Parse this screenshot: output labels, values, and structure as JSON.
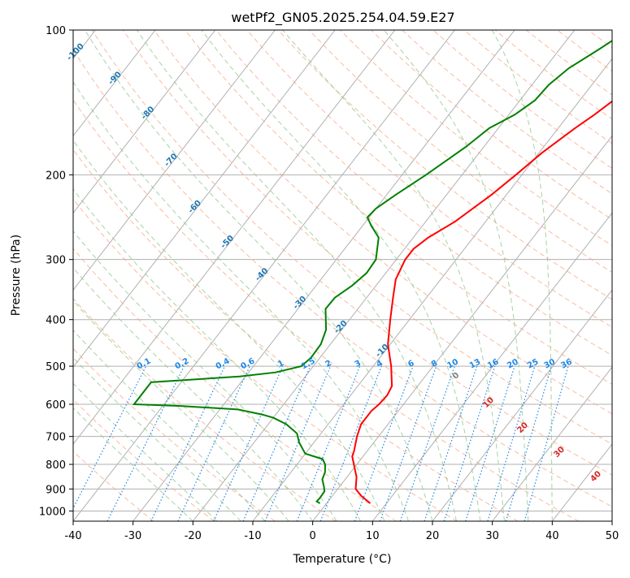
{
  "chart_data": {
    "type": "line",
    "chart_kind": "skew-T log-P diagram",
    "title": "wetPf2_GN05.2025.254.04.59.E27",
    "xlabel": "Temperature (°C)",
    "ylabel": "Pressure (hPa)",
    "xlim": [
      -40,
      50
    ],
    "ylim": [
      1050,
      100
    ],
    "y_scale": "log",
    "x_ticks": [
      -40,
      -30,
      -20,
      -10,
      0,
      10,
      20,
      30,
      40,
      50
    ],
    "y_ticks": [
      100,
      200,
      300,
      400,
      500,
      600,
      700,
      800,
      900,
      1000
    ],
    "grid": true,
    "legend": "none",
    "series": [
      {
        "color": "#ff0000",
        "points": [
          [
            964,
            7.3
          ],
          [
            930,
            4.8
          ],
          [
            900,
            3.0
          ],
          [
            850,
            1.6
          ],
          [
            800,
            -0.5
          ],
          [
            770,
            -1.8
          ],
          [
            750,
            -2.2
          ],
          [
            700,
            -3.6
          ],
          [
            660,
            -4.5
          ],
          [
            620,
            -4.5
          ],
          [
            600,
            -4.1
          ],
          [
            575,
            -3.9
          ],
          [
            550,
            -4.3
          ],
          [
            500,
            -7.0
          ],
          [
            450,
            -10.4
          ],
          [
            400,
            -13.2
          ],
          [
            360,
            -15.6
          ],
          [
            330,
            -17.5
          ],
          [
            300,
            -18.5
          ],
          [
            285,
            -18.5
          ],
          [
            270,
            -17.5
          ],
          [
            250,
            -15.1
          ],
          [
            220,
            -12.5
          ],
          [
            200,
            -11.0
          ],
          [
            180,
            -9.5
          ],
          [
            160,
            -7.2
          ],
          [
            150,
            -5.7
          ],
          [
            140,
            -4.4
          ],
          [
            130,
            -2.0
          ],
          [
            120,
            0.5
          ],
          [
            110,
            3.0
          ],
          [
            100,
            6.0
          ]
        ]
      },
      {
        "color": "#008000",
        "points": [
          [
            964,
            -1.1
          ],
          [
            955,
            -1.9
          ],
          [
            940,
            -1.8
          ],
          [
            910,
            -1.9
          ],
          [
            890,
            -2.6
          ],
          [
            860,
            -3.8
          ],
          [
            830,
            -4.3
          ],
          [
            800,
            -5.3
          ],
          [
            780,
            -6.4
          ],
          [
            760,
            -10.0
          ],
          [
            720,
            -12.5
          ],
          [
            690,
            -14.0
          ],
          [
            660,
            -17.0
          ],
          [
            640,
            -20.0
          ],
          [
            630,
            -22.3
          ],
          [
            615,
            -27.0
          ],
          [
            605,
            -37.0
          ],
          [
            600,
            -45.0
          ],
          [
            540,
            -45.0
          ],
          [
            525,
            -31.0
          ],
          [
            515,
            -25.5
          ],
          [
            500,
            -22.0
          ],
          [
            480,
            -21.5
          ],
          [
            450,
            -21.6
          ],
          [
            420,
            -22.6
          ],
          [
            380,
            -25.4
          ],
          [
            360,
            -25.3
          ],
          [
            340,
            -24.0
          ],
          [
            320,
            -23.2
          ],
          [
            300,
            -23.4
          ],
          [
            270,
            -25.8
          ],
          [
            255,
            -28.6
          ],
          [
            245,
            -30.3
          ],
          [
            235,
            -30.0
          ],
          [
            220,
            -28.5
          ],
          [
            200,
            -26.0
          ],
          [
            175,
            -23.0
          ],
          [
            160,
            -21.5
          ],
          [
            150,
            -19.0
          ],
          [
            140,
            -17.5
          ],
          [
            130,
            -17.2
          ],
          [
            120,
            -16.0
          ],
          [
            110,
            -13.5
          ],
          [
            100,
            -11.0
          ]
        ]
      }
    ],
    "moist_adiabat_labels": [
      "-100",
      "-90",
      "-80",
      "-70",
      "-60",
      "-50",
      "-40",
      "-30",
      "-20",
      "-10"
    ],
    "mixing_ratio_labels": [
      "0.1",
      "0.2",
      "0.4",
      "0.6",
      "1",
      "1.5",
      "2",
      "3",
      "4",
      "6",
      "8",
      "10",
      "13",
      "16",
      "20",
      "25",
      "30",
      "36"
    ],
    "isotherm_labels": [
      "0",
      "10",
      "20",
      "30",
      "40"
    ],
    "colors": {
      "temperature": "#ff0000",
      "dewpoint": "#008000",
      "moist_adiabat_label": "#1f77b4",
      "mixing_ratio": "#1e88e5",
      "dry_adiabat": "#f4a582",
      "moist_adiabat": "#90c890",
      "isotherm_label": "#d62728",
      "grid": "#b0b0b0"
    }
  }
}
